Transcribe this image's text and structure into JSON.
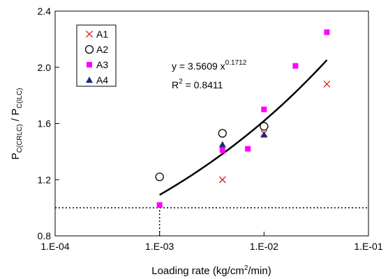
{
  "chart_data": {
    "type": "scatter",
    "xscale": "log",
    "xlim": [
      0.0001,
      0.1
    ],
    "ylim": [
      0.8,
      2.4
    ],
    "grid": false,
    "legend_position": "top-left",
    "x_ticks": [
      0.0001,
      0.001,
      0.01,
      0.1
    ],
    "x_tick_labels": [
      "1.E-04",
      "1.E-03",
      "1.E-02",
      "1.E-01"
    ],
    "y_ticks": [
      0.8,
      1.2,
      1.6,
      2.0,
      2.4
    ],
    "y_tick_labels": [
      "0.8",
      "1.2",
      "1.6",
      "2.0",
      "2.4"
    ],
    "xlabel": {
      "main": "Loading rate (kg/cm",
      "sup": "2",
      "tail": "/min)"
    },
    "ylabel": {
      "p1": "P",
      "s1": "C(CRLC)",
      "mid": " / P",
      "s2": "C(ILC)"
    },
    "series": [
      {
        "name": "A1",
        "marker": "x",
        "color": "#e8141e",
        "points": [
          [
            0.004,
            1.2
          ],
          [
            0.01,
            1.53
          ],
          [
            0.04,
            1.88
          ]
        ]
      },
      {
        "name": "A2",
        "marker": "circle-open",
        "color": "#000000",
        "points": [
          [
            0.001,
            1.22
          ],
          [
            0.004,
            1.53
          ],
          [
            0.01,
            1.58
          ]
        ]
      },
      {
        "name": "A3",
        "marker": "square",
        "color": "#ff00ff",
        "points": [
          [
            0.001,
            1.02
          ],
          [
            0.004,
            1.41
          ],
          [
            0.007,
            1.42
          ],
          [
            0.01,
            1.7
          ],
          [
            0.02,
            2.01
          ],
          [
            0.04,
            2.25
          ]
        ]
      },
      {
        "name": "A4",
        "marker": "triangle",
        "color": "#1a2a7a",
        "points": [
          [
            0.004,
            1.45
          ],
          [
            0.01,
            1.52
          ]
        ]
      }
    ],
    "fit": {
      "type": "power",
      "a": 3.5609,
      "b": 0.1712,
      "x_range": [
        0.001,
        0.04
      ],
      "color": "#000000",
      "equation": {
        "lhs": "y = 3.5609 x",
        "exp": "0.1712"
      },
      "r2": {
        "lhs": "R",
        "exp": "2",
        "rhs": " = 0.8411"
      }
    },
    "reference_lines": [
      {
        "orientation": "horizontal",
        "y": 1.0,
        "x_from": 0.0001,
        "x_to": 0.1,
        "style": "dotted"
      },
      {
        "orientation": "vertical",
        "x": 0.001,
        "y_from": 0.8,
        "y_to": 1.0,
        "style": "dotted"
      }
    ]
  }
}
